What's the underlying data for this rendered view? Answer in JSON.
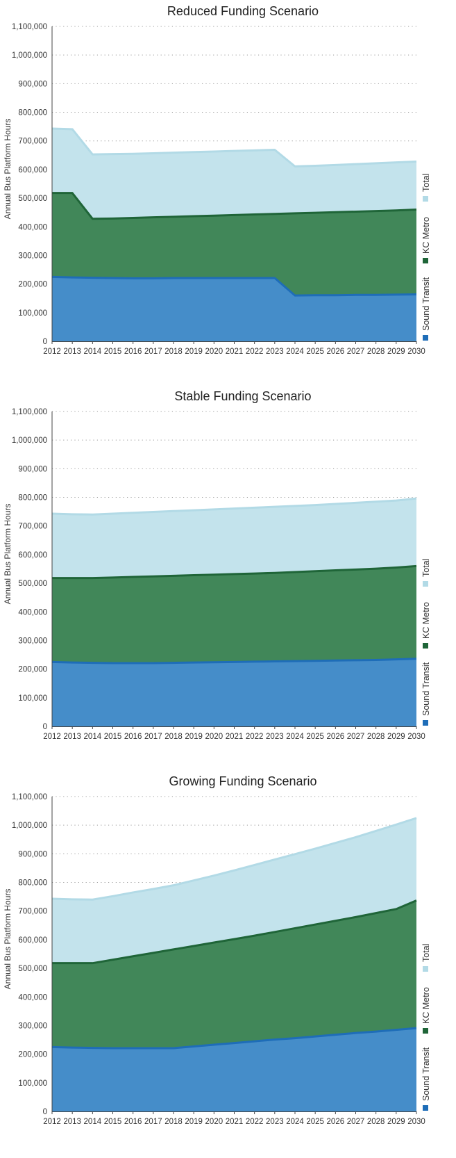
{
  "chart_data": [
    {
      "type": "area",
      "title": "Reduced Funding Scenario",
      "ylabel": "Annual Bus Platform Hours",
      "xlabel": "",
      "stacked": false,
      "grid": "horizontal dotted",
      "legend_position": "right",
      "ylim": [
        0,
        1100000
      ],
      "yticks": [
        "0",
        "100,000",
        "200,000",
        "300,000",
        "400,000",
        "500,000",
        "600,000",
        "700,000",
        "800,000",
        "900,000",
        "1,000,000",
        "1,100,000"
      ],
      "x": [
        "2012",
        "2013",
        "2014",
        "2015",
        "2016",
        "2017",
        "2018",
        "2019",
        "2020",
        "2021",
        "2022",
        "2023",
        "2024",
        "2025",
        "2026",
        "2027",
        "2028",
        "2029",
        "2030"
      ],
      "series": [
        {
          "name": "Total",
          "color": "#c3e3ec",
          "line": "#b2dae6",
          "values": [
            743000,
            741000,
            653000,
            654000,
            655000,
            657000,
            659000,
            661000,
            663000,
            665000,
            667000,
            669000,
            611000,
            613000,
            616000,
            619000,
            622000,
            625000,
            628000
          ]
        },
        {
          "name": "KC Metro",
          "color": "#418759",
          "line": "#1f6538",
          "values": [
            518000,
            518000,
            428000,
            429000,
            431000,
            433000,
            435000,
            437000,
            439000,
            441000,
            443000,
            445000,
            447000,
            449000,
            451000,
            453000,
            455000,
            457000,
            460000
          ]
        },
        {
          "name": "Sound Transit",
          "color": "#458dc9",
          "line": "#1e6db8",
          "values": [
            225000,
            223000,
            222000,
            221000,
            220000,
            220000,
            221000,
            221000,
            221000,
            221000,
            221000,
            221000,
            160000,
            161000,
            161000,
            162000,
            162000,
            163000,
            164000
          ]
        }
      ]
    },
    {
      "type": "area",
      "title": "Stable Funding Scenario",
      "ylabel": "Annual Bus Platform Hours",
      "xlabel": "",
      "stacked": false,
      "grid": "horizontal dotted",
      "legend_position": "right",
      "ylim": [
        0,
        1100000
      ],
      "yticks": [
        "0",
        "100,000",
        "200,000",
        "300,000",
        "400,000",
        "500,000",
        "600,000",
        "700,000",
        "800,000",
        "900,000",
        "1,000,000",
        "1,100,000"
      ],
      "x": [
        "2012",
        "2013",
        "2014",
        "2015",
        "2016",
        "2017",
        "2018",
        "2019",
        "2020",
        "2021",
        "2022",
        "2023",
        "2024",
        "2025",
        "2026",
        "2027",
        "2028",
        "2029",
        "2030"
      ],
      "series": [
        {
          "name": "Total",
          "color": "#c3e3ec",
          "line": "#b2dae6",
          "values": [
            743000,
            741000,
            740000,
            743000,
            746000,
            749000,
            752000,
            755000,
            758000,
            761000,
            764000,
            767000,
            770000,
            773000,
            777000,
            781000,
            785000,
            789000,
            796000
          ]
        },
        {
          "name": "KC Metro",
          "color": "#418759",
          "line": "#1f6538",
          "values": [
            518000,
            518000,
            518000,
            520000,
            522000,
            524000,
            526000,
            528000,
            530000,
            532000,
            534000,
            536000,
            539000,
            542000,
            545000,
            548000,
            551000,
            555000,
            560000
          ]
        },
        {
          "name": "Sound Transit",
          "color": "#458dc9",
          "line": "#1e6db8",
          "values": [
            225000,
            223000,
            222000,
            221000,
            221000,
            221000,
            222000,
            223000,
            224000,
            225000,
            226000,
            227000,
            228000,
            229000,
            230000,
            231000,
            232000,
            234000,
            236000
          ]
        }
      ]
    },
    {
      "type": "area",
      "title": "Growing Funding Scenario",
      "ylabel": "Annual Bus Platform Hours",
      "xlabel": "",
      "stacked": false,
      "grid": "horizontal dotted",
      "legend_position": "right",
      "ylim": [
        0,
        1100000
      ],
      "yticks": [
        "0",
        "100,000",
        "200,000",
        "300,000",
        "400,000",
        "500,000",
        "600,000",
        "700,000",
        "800,000",
        "900,000",
        "1,000,000",
        "1,100,000"
      ],
      "x": [
        "2012",
        "2013",
        "2014",
        "2015",
        "2016",
        "2017",
        "2018",
        "2019",
        "2020",
        "2021",
        "2022",
        "2023",
        "2024",
        "2025",
        "2026",
        "2027",
        "2028",
        "2029",
        "2030"
      ],
      "series": [
        {
          "name": "Total",
          "color": "#c3e3ec",
          "line": "#b2dae6",
          "values": [
            743000,
            741000,
            740000,
            752000,
            765000,
            777000,
            790000,
            807000,
            824000,
            842000,
            861000,
            880000,
            899000,
            918000,
            938000,
            958000,
            980000,
            1002000,
            1025000
          ]
        },
        {
          "name": "KC Metro",
          "color": "#418759",
          "line": "#1f6538",
          "values": [
            518000,
            518000,
            518000,
            530000,
            542000,
            554000,
            566000,
            578000,
            590000,
            602000,
            614000,
            627000,
            640000,
            653000,
            666000,
            679000,
            693000,
            707000,
            737000
          ]
        },
        {
          "name": "Sound Transit",
          "color": "#458dc9",
          "line": "#1e6db8",
          "values": [
            225000,
            223000,
            222000,
            221000,
            221000,
            221000,
            221000,
            227000,
            233000,
            239000,
            245000,
            251000,
            256000,
            262000,
            268000,
            274000,
            279000,
            285000,
            291000
          ]
        }
      ]
    }
  ]
}
